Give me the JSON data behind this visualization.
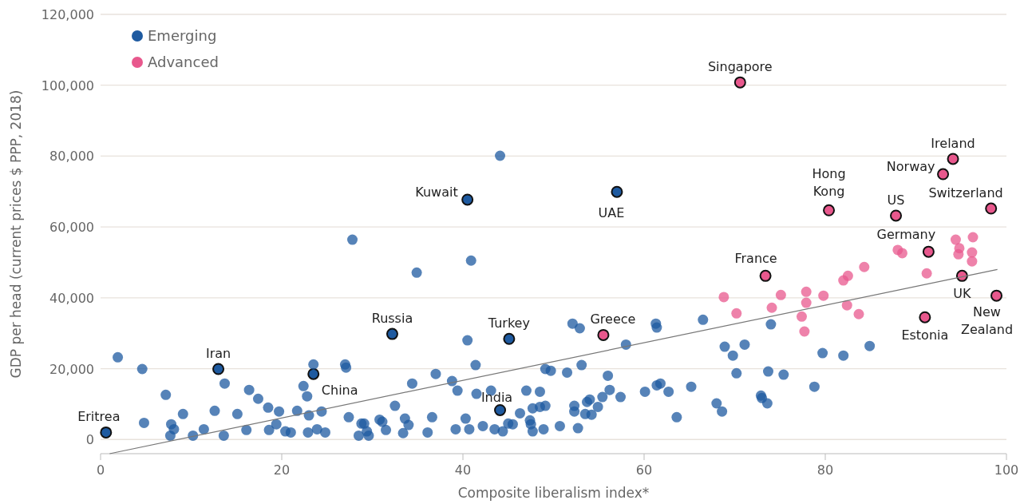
{
  "chart_data": {
    "type": "scatter",
    "xlabel": "Composite liberalism index*",
    "ylabel": "GDP per head (current prices $ PPP, 2018)",
    "xlim": [
      0,
      100
    ],
    "xticks": [
      0,
      20,
      40,
      60,
      80,
      100
    ],
    "ylim": [
      -4000,
      120000
    ],
    "yticks": [
      {
        "value": 0,
        "label": "0"
      },
      {
        "value": 20000,
        "label": "20,000"
      },
      {
        "value": 40000,
        "label": "40,000"
      },
      {
        "value": 60000,
        "label": "60,000"
      },
      {
        "value": 80000,
        "label": "80,000"
      },
      {
        "value": 100000,
        "label": "100,000"
      },
      {
        "value": 120000,
        "label": "120,000"
      }
    ],
    "grid": "y",
    "legend": "top left",
    "series": [
      {
        "name": "Emerging",
        "color": "#1e5aa0",
        "marker": "circle",
        "x": [
          0.6,
          13.0,
          23.5,
          32.2,
          40.5,
          45.1,
          44.1,
          57.0,
          1.9,
          4.6,
          4.8,
          7.2,
          7.8,
          7.7,
          8.1,
          9.1,
          10.2,
          11.4,
          12.6,
          13.7,
          13.6,
          15.1,
          16.1,
          16.4,
          17.4,
          18.5,
          18.6,
          19.4,
          19.7,
          20.4,
          21.0,
          21.7,
          22.4,
          22.8,
          23.0,
          22.9,
          23.5,
          23.9,
          24.4,
          24.8,
          27.0,
          27.1,
          27.8,
          27.4,
          28.5,
          28.8,
          29.1,
          29.4,
          29.6,
          30.8,
          31.1,
          32.5,
          31.5,
          33.4,
          33.6,
          34.0,
          34.4,
          34.9,
          36.1,
          36.6,
          37.0,
          38.8,
          39.4,
          39.2,
          40.3,
          40.5,
          40.7,
          40.9,
          41.4,
          41.5,
          42.2,
          43.1,
          43.5,
          44.4,
          44.1,
          45.0,
          45.5,
          46.3,
          47.0,
          47.4,
          47.5,
          47.7,
          47.7,
          48.5,
          48.5,
          49.1,
          49.7,
          48.9,
          49.1,
          50.7,
          51.5,
          52.1,
          52.9,
          52.3,
          52.3,
          52.7,
          53.1,
          53.5,
          53.7,
          54.0,
          54.2,
          54.9,
          55.4,
          56.0,
          56.2,
          57.4,
          58.0,
          60.1,
          61.3,
          61.4,
          61.4,
          61.8,
          62.7,
          63.6,
          65.2,
          66.5,
          68.0,
          68.6,
          68.9,
          69.8,
          70.2,
          71.1,
          72.9,
          73.0,
          73.6,
          73.7,
          74.0,
          75.4,
          79.7,
          78.8,
          82.0,
          84.9
        ],
        "values": [
          2000,
          19900,
          18500,
          29800,
          67700,
          28400,
          8300,
          69900,
          23200,
          19900,
          4700,
          12600,
          4300,
          1100,
          2900,
          7200,
          1100,
          2900,
          8100,
          15800,
          1100,
          7200,
          2700,
          14000,
          11500,
          9000,
          2700,
          4300,
          7900,
          2300,
          2000,
          8100,
          15100,
          12200,
          6800,
          2000,
          21200,
          2900,
          7900,
          2000,
          21200,
          20300,
          56400,
          6300,
          1100,
          4500,
          4500,
          2300,
          1100,
          5600,
          5000,
          9500,
          2700,
          1800,
          5900,
          4100,
          15800,
          47100,
          2000,
          6300,
          18500,
          16500,
          13800,
          2900,
          5900,
          28000,
          2900,
          50500,
          21000,
          12900,
          3800,
          13800,
          2900,
          2300,
          80100,
          4500,
          4300,
          7400,
          13800,
          5400,
          4300,
          2300,
          8800,
          9200,
          13500,
          19900,
          19400,
          2900,
          9500,
          3800,
          18900,
          32700,
          31400,
          7900,
          9500,
          3200,
          21000,
          7200,
          10600,
          11300,
          7000,
          9200,
          12000,
          18000,
          14000,
          12000,
          26800,
          13500,
          32700,
          31600,
          15300,
          15800,
          13500,
          6300,
          14900,
          33800,
          10200,
          7900,
          26200,
          23700,
          18700,
          26800,
          12400,
          11700,
          10200,
          19200,
          32500,
          18300,
          24400,
          14900,
          23700,
          26400
        ]
      },
      {
        "name": "Advanced",
        "color": "#e8588d",
        "marker": "circle",
        "x": [
          55.5,
          70.6,
          73.4,
          80.4,
          87.8,
          91.4,
          94.1,
          93.0,
          98.3,
          95.1,
          98.9,
          91.0,
          68.8,
          70.2,
          74.1,
          75.1,
          77.4,
          77.7,
          77.9,
          77.9,
          79.8,
          82.0,
          82.5,
          82.4,
          83.7,
          84.3,
          88.0,
          88.5,
          91.2,
          94.4,
          94.8,
          94.7,
          96.3,
          96.2,
          96.2
        ],
        "values": [
          29500,
          100800,
          46200,
          64700,
          63200,
          53000,
          79200,
          74900,
          65200,
          46200,
          40600,
          34500,
          40200,
          35600,
          37200,
          40800,
          34700,
          30500,
          41700,
          38600,
          40600,
          44900,
          46200,
          37900,
          35400,
          48700,
          53500,
          52600,
          46900,
          56400,
          54000,
          52300,
          57100,
          52800,
          50300
        ]
      },
      {
        "type": "line",
        "color": "#777777",
        "x": [
          1,
          99
        ],
        "values": [
          -4000,
          48000
        ]
      }
    ],
    "annotations": [
      {
        "text": "Eritrea",
        "x": 0.6,
        "y": 2000
      },
      {
        "text": "Iran",
        "x": 13.0,
        "y": 19900
      },
      {
        "text": "China",
        "x": 23.5,
        "y": 18500
      },
      {
        "text": "Russia",
        "x": 32.2,
        "y": 29800
      },
      {
        "text": "Kuwait",
        "x": 40.5,
        "y": 67700
      },
      {
        "text": "Turkey",
        "x": 45.1,
        "y": 28400
      },
      {
        "text": "India",
        "x": 44.1,
        "y": 8300
      },
      {
        "text": "UAE",
        "x": 57.0,
        "y": 69900
      },
      {
        "text": "Greece",
        "x": 55.5,
        "y": 29500
      },
      {
        "text": "Singapore",
        "x": 70.6,
        "y": 100800
      },
      {
        "text": "France",
        "x": 73.4,
        "y": 46200
      },
      {
        "text": "Hong Kong",
        "x": 80.4,
        "y": 64700
      },
      {
        "text": "US",
        "x": 87.8,
        "y": 63200
      },
      {
        "text": "Germany",
        "x": 91.4,
        "y": 53000
      },
      {
        "text": "Ireland",
        "x": 94.1,
        "y": 79200
      },
      {
        "text": "Norway",
        "x": 93.0,
        "y": 74900
      },
      {
        "text": "Switzerland",
        "x": 98.3,
        "y": 65200
      },
      {
        "text": "UK",
        "x": 95.1,
        "y": 46200
      },
      {
        "text": "New Zealand",
        "x": 98.9,
        "y": 40600
      },
      {
        "text": "Estonia",
        "x": 91.0,
        "y": 34500
      }
    ]
  }
}
